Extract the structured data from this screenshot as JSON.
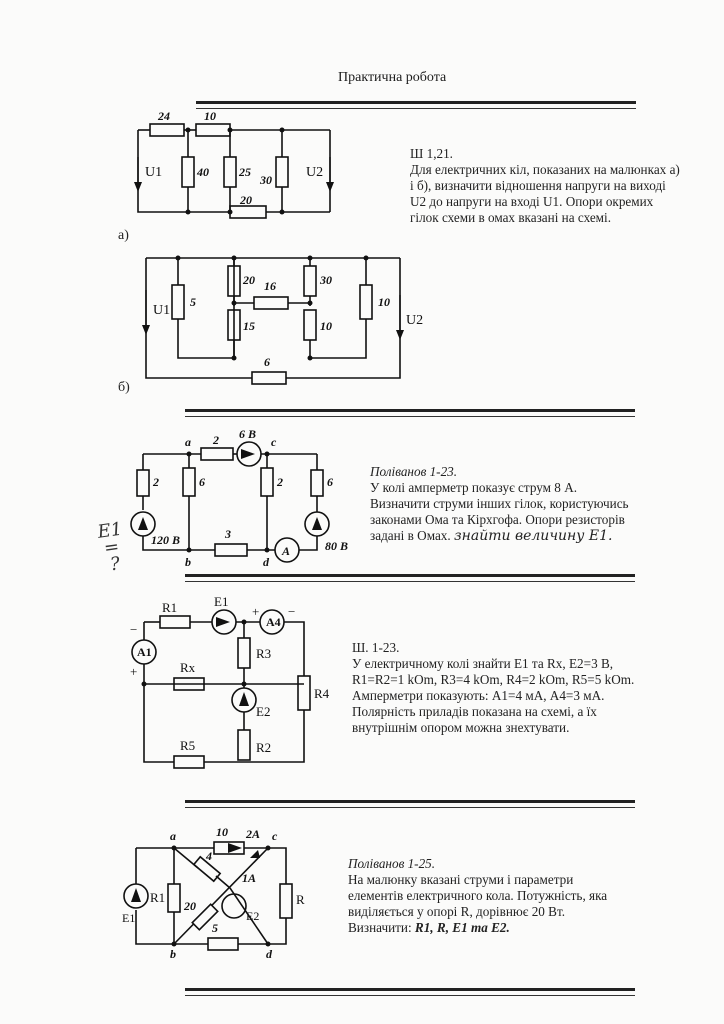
{
  "page_title": "Практична робота",
  "p1": {
    "code": "Ш 1,21.",
    "lines": [
      "Для електричних кіл, показаних на малюнках а)",
      "і б), визначити відношення напруги на виході",
      "U2 до напруги на вході U1. Опори окремих",
      "гілок схеми в омах вказані на схемі."
    ],
    "label_a": "а)",
    "label_b": "б)",
    "fig_a": {
      "r1": "24",
      "r2": "10",
      "r3": "40",
      "r4": "25",
      "r5": "30",
      "r6": "20",
      "u_in": "U1",
      "u_out": "U2"
    },
    "fig_b": {
      "r1": "5",
      "r2": "20",
      "r3": "16",
      "r4": "30",
      "r5": "10",
      "r6": "15",
      "r7": "10",
      "r8": "6",
      "u_in": "U1",
      "u_out": "U2"
    }
  },
  "p2": {
    "code": "Поліванов 1-23.",
    "lines": [
      "У колі амперметр показує струм 8 А.",
      "Визначити струми інших гілок, користуючись",
      "законами Ома та Кірхгофа. Опори резисторів"
    ],
    "last_line": "задані в Омах.",
    "handwritten": "знайти величину E1.",
    "margin_note": [
      "E1",
      "=",
      "?"
    ],
    "fig": {
      "a": "a",
      "b": "b",
      "c": "c",
      "d": "d",
      "r_top": "2",
      "e_top": "6 В",
      "r_left": "2",
      "r_mid1": "6",
      "r_mid2": "2",
      "r_right": "6",
      "r_bottom": "3",
      "e_left": "120 В",
      "e_right": "80 В",
      "ammeter": "A"
    }
  },
  "p3": {
    "code": "Ш. 1-23.",
    "lines": [
      "У електричному колі знайти Е1 та Rx, E2=3 В,",
      "R1=R2=1 kOm, R3=4 kOm, R4=2 kOm, R5=5 kOm.",
      "Амперметри показують: А1=4 мА, А4=3 мА.",
      "Полярність приладів показана на схемі, а їх",
      "внутрішнім опором можна знехтувати."
    ],
    "fig": {
      "r1": "R1",
      "e1": "E1",
      "a4": "A4",
      "a1": "A1",
      "r3": "R3",
      "rx": "Rx",
      "e2": "E2",
      "r4": "R4",
      "r2": "R2",
      "r5": "R5",
      "minus": "−",
      "plus": "+"
    }
  },
  "p4": {
    "code": "Поліванов 1-25.",
    "lines": [
      "На малюнку вказані струми і параметри",
      "елементів електричного кола. Потужність, яка",
      "виділяється у опорі R, дорівнює 20 Вт."
    ],
    "ask_prefix": "Визначити: ",
    "ask_vars": "R1, R, E1 та E2.",
    "fig": {
      "a": "a",
      "b": "b",
      "c": "c",
      "d": "d",
      "r_top": "10",
      "i_top": "2A",
      "r_diag1": "4",
      "i_diag": "1A",
      "r_diag2": "20",
      "r_bottom": "5",
      "e1": "E1",
      "r1": "R1",
      "e2": "E2",
      "r": "R"
    }
  }
}
